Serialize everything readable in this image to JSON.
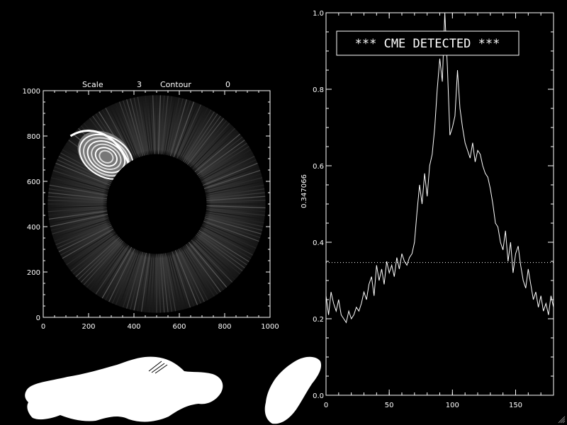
{
  "header": {
    "scale_label": "Scale",
    "scale_value": "3",
    "contour_label": "Contour",
    "contour_value": "0"
  },
  "banner": "*** CME DETECTED ***",
  "chart_data": [
    {
      "type": "heatmap",
      "title": "",
      "xlim": [
        0,
        1000
      ],
      "ylim": [
        0,
        1000
      ],
      "x_ticks": [
        "0",
        "200",
        "400",
        "600",
        "800",
        "1000"
      ],
      "y_ticks": [
        "0",
        "200",
        "400",
        "600",
        "800",
        "1000"
      ],
      "occulter_center": [
        500,
        500
      ],
      "occulter_radius": 220,
      "field_radius": 480,
      "colormap": "grayscale"
    },
    {
      "type": "line",
      "xlim": [
        0,
        180
      ],
      "ylim": [
        0.0,
        1.0
      ],
      "ylabel": "0.347066",
      "x_ticks": [
        "0",
        "50",
        "100",
        "150"
      ],
      "y_ticks": [
        "0.0",
        "0.2",
        "0.4",
        "0.6",
        "0.8",
        "1.0"
      ],
      "threshold": 0.347066,
      "series": [
        {
          "x": [
            0,
            2,
            4,
            6,
            8,
            10,
            12,
            14,
            16,
            18,
            20,
            22,
            24,
            26,
            28,
            30,
            32,
            34,
            36,
            38,
            40,
            42,
            44,
            46,
            48,
            50,
            52,
            54,
            56,
            58,
            60,
            62,
            64,
            66,
            68,
            70,
            72,
            74,
            76,
            78,
            80,
            82,
            84,
            86,
            88,
            90,
            92,
            94,
            96,
            98,
            100,
            102,
            104,
            106,
            108,
            110,
            112,
            114,
            116,
            118,
            120,
            122,
            124,
            126,
            128,
            130,
            132,
            134,
            136,
            138,
            140,
            142,
            144,
            146,
            148,
            150,
            152,
            154,
            156,
            158,
            160,
            162,
            164,
            166,
            168,
            170,
            172,
            174,
            176,
            178,
            180
          ],
          "values": [
            0.26,
            0.21,
            0.27,
            0.24,
            0.22,
            0.25,
            0.21,
            0.2,
            0.19,
            0.22,
            0.2,
            0.21,
            0.23,
            0.22,
            0.24,
            0.27,
            0.25,
            0.29,
            0.31,
            0.26,
            0.34,
            0.3,
            0.33,
            0.29,
            0.35,
            0.32,
            0.34,
            0.31,
            0.36,
            0.33,
            0.37,
            0.35,
            0.34,
            0.36,
            0.37,
            0.4,
            0.48,
            0.55,
            0.5,
            0.58,
            0.52,
            0.6,
            0.63,
            0.7,
            0.8,
            0.88,
            0.82,
            1.0,
            0.86,
            0.68,
            0.7,
            0.73,
            0.85,
            0.75,
            0.7,
            0.66,
            0.64,
            0.62,
            0.66,
            0.61,
            0.64,
            0.63,
            0.6,
            0.58,
            0.57,
            0.54,
            0.5,
            0.45,
            0.44,
            0.4,
            0.38,
            0.43,
            0.35,
            0.4,
            0.32,
            0.37,
            0.39,
            0.34,
            0.3,
            0.28,
            0.33,
            0.29,
            0.25,
            0.27,
            0.23,
            0.26,
            0.22,
            0.24,
            0.21,
            0.26,
            0.23
          ]
        }
      ]
    }
  ]
}
